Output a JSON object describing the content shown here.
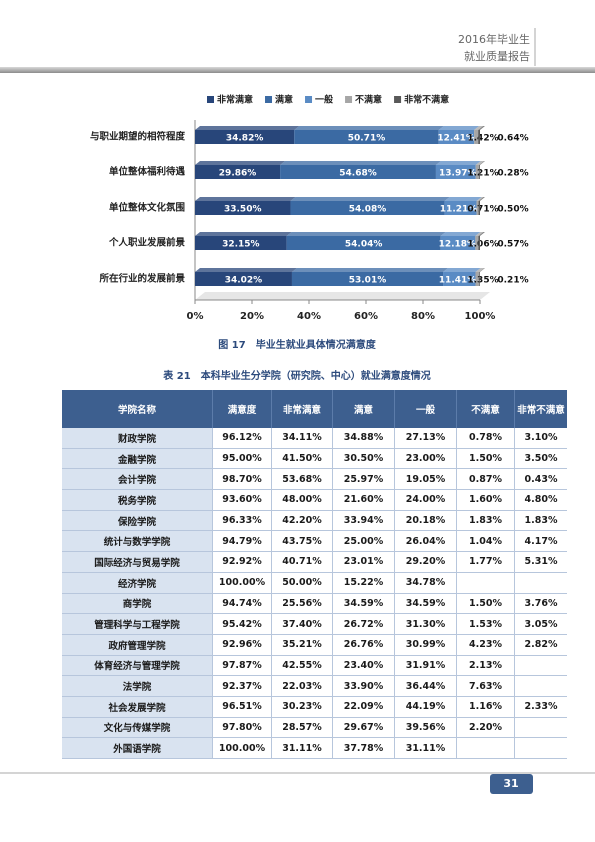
{
  "header": {
    "line1": "2016年毕业生",
    "line2": "就业质量报告"
  },
  "chart_data": {
    "type": "bar",
    "orientation": "horizontal",
    "stacked": true,
    "categories": [
      "与职业期望的相符程度",
      "单位整体福利待遇",
      "单位整体文化氛围",
      "个人职业发展前景",
      "所在行业的发展前景"
    ],
    "series": [
      {
        "name": "非常满意",
        "color": "#28467a",
        "values": [
          34.82,
          29.86,
          33.5,
          32.15,
          34.02
        ],
        "value_labels": [
          "34.82%",
          "29.86%",
          "33.50%",
          "32.15%",
          "34.02%"
        ]
      },
      {
        "name": "满意",
        "color": "#3b6aa3",
        "values": [
          50.71,
          54.68,
          54.08,
          54.04,
          53.01
        ],
        "value_labels": [
          "50.71%",
          "54.68%",
          "54.08%",
          "54.04%",
          "53.01%"
        ]
      },
      {
        "name": "一般",
        "color": "#5a8bc4",
        "values": [
          12.41,
          13.97,
          11.21,
          12.18,
          11.41
        ],
        "value_labels": [
          "12.41%",
          "13.97%",
          "11.21%",
          "12.18%",
          "11.41%"
        ]
      },
      {
        "name": "不满意",
        "color": "#a6a6a6",
        "values": [
          1.42,
          1.21,
          0.71,
          1.06,
          1.35
        ],
        "value_labels": [
          "1.42%",
          "1.21%",
          "0.71%",
          "1.06%",
          "1.35%"
        ]
      },
      {
        "name": "非常不满意",
        "color": "#595959",
        "values": [
          0.64,
          0.28,
          0.5,
          0.57,
          0.21
        ],
        "value_labels": [
          "0.64%",
          "0.28%",
          "0.50%",
          "0.57%",
          "0.21%"
        ]
      }
    ],
    "xlim": [
      0,
      100
    ],
    "xticks": [
      {
        "value": 0,
        "label": "0%"
      },
      {
        "value": 20,
        "label": "20%"
      },
      {
        "value": 40,
        "label": "40%"
      },
      {
        "value": 60,
        "label": "60%"
      },
      {
        "value": 80,
        "label": "80%"
      },
      {
        "value": 100,
        "label": "100%"
      }
    ],
    "legend": "top",
    "grid": false
  },
  "figure_caption": "图 17　毕业生就业具体情况满意度",
  "table_caption": "表 21　本科毕业生分学院（研究院、中心）就业满意度情况",
  "table": {
    "headers": [
      "学院名称",
      "满意度",
      "非常满意",
      "满意",
      "一般",
      "不满意",
      "非常不满意"
    ],
    "rows": [
      [
        "财政学院",
        "96.12%",
        "34.11%",
        "34.88%",
        "27.13%",
        "0.78%",
        "3.10%"
      ],
      [
        "金融学院",
        "95.00%",
        "41.50%",
        "30.50%",
        "23.00%",
        "1.50%",
        "3.50%"
      ],
      [
        "会计学院",
        "98.70%",
        "53.68%",
        "25.97%",
        "19.05%",
        "0.87%",
        "0.43%"
      ],
      [
        "税务学院",
        "93.60%",
        "48.00%",
        "21.60%",
        "24.00%",
        "1.60%",
        "4.80%"
      ],
      [
        "保险学院",
        "96.33%",
        "42.20%",
        "33.94%",
        "20.18%",
        "1.83%",
        "1.83%"
      ],
      [
        "统计与数学学院",
        "94.79%",
        "43.75%",
        "25.00%",
        "26.04%",
        "1.04%",
        "4.17%"
      ],
      [
        "国际经济与贸易学院",
        "92.92%",
        "40.71%",
        "23.01%",
        "29.20%",
        "1.77%",
        "5.31%"
      ],
      [
        "经济学院",
        "100.00%",
        "50.00%",
        "15.22%",
        "34.78%",
        null,
        null
      ],
      [
        "商学院",
        "94.74%",
        "25.56%",
        "34.59%",
        "34.59%",
        "1.50%",
        "3.76%"
      ],
      [
        "管理科学与工程学院",
        "95.42%",
        "37.40%",
        "26.72%",
        "31.30%",
        "1.53%",
        "3.05%"
      ],
      [
        "政府管理学院",
        "92.96%",
        "35.21%",
        "26.76%",
        "30.99%",
        "4.23%",
        "2.82%"
      ],
      [
        "体育经济与管理学院",
        "97.87%",
        "42.55%",
        "23.40%",
        "31.91%",
        "2.13%",
        null
      ],
      [
        "法学院",
        "92.37%",
        "22.03%",
        "33.90%",
        "36.44%",
        "7.63%",
        null
      ],
      [
        "社会发展学院",
        "96.51%",
        "30.23%",
        "22.09%",
        "44.19%",
        "1.16%",
        "2.33%"
      ],
      [
        "文化与传媒学院",
        "97.80%",
        "28.57%",
        "29.67%",
        "39.56%",
        "2.20%",
        null
      ],
      [
        "外国语学院",
        "100.00%",
        "31.11%",
        "37.78%",
        "31.11%",
        null,
        null
      ]
    ]
  },
  "page_number": "31"
}
